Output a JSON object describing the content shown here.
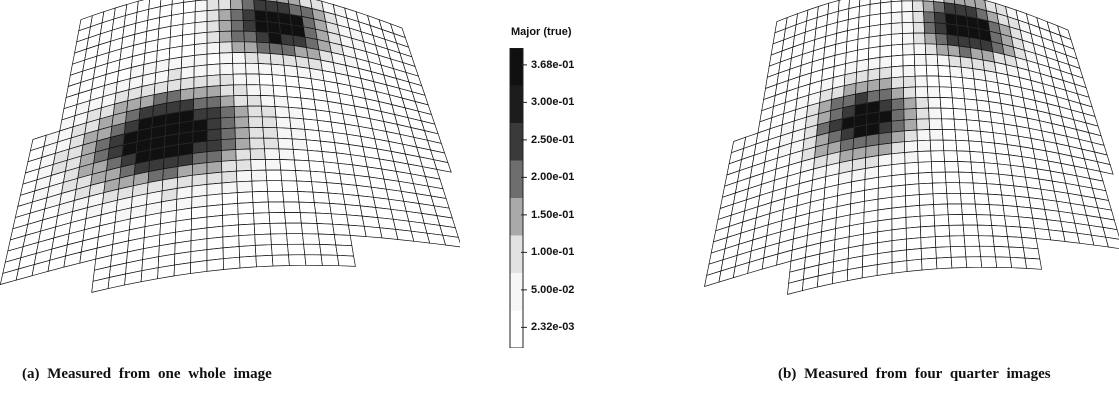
{
  "figure": {
    "panels": [
      {
        "id": "a",
        "caption": "(a) Measured from one whole image",
        "strain_hotspots": [
          {
            "label": "upper-band",
            "level": "3.68e-01"
          },
          {
            "label": "lower-ellipse",
            "level": "3.68e-01"
          }
        ]
      },
      {
        "id": "b",
        "caption": "(b) Measured from four quarter images",
        "strain_hotspots": [
          {
            "label": "upper-band",
            "level": "3.68e-01"
          },
          {
            "label": "lower-ellipse",
            "level": "3.68e-01"
          }
        ]
      }
    ]
  },
  "legend": {
    "title": "Major (true)",
    "ticks": [
      "3.68e-01",
      "3.00e-01",
      "2.50e-01",
      "2.00e-01",
      "1.50e-01",
      "1.00e-01",
      "5.00e-02",
      "2.32e-03"
    ],
    "band_colors": [
      "#101010",
      "#1c1c1c",
      "#3a3a3a",
      "#6e6e6e",
      "#a9a9a9",
      "#e2e2e2",
      "#f6f6f6",
      "#ffffff"
    ]
  }
}
